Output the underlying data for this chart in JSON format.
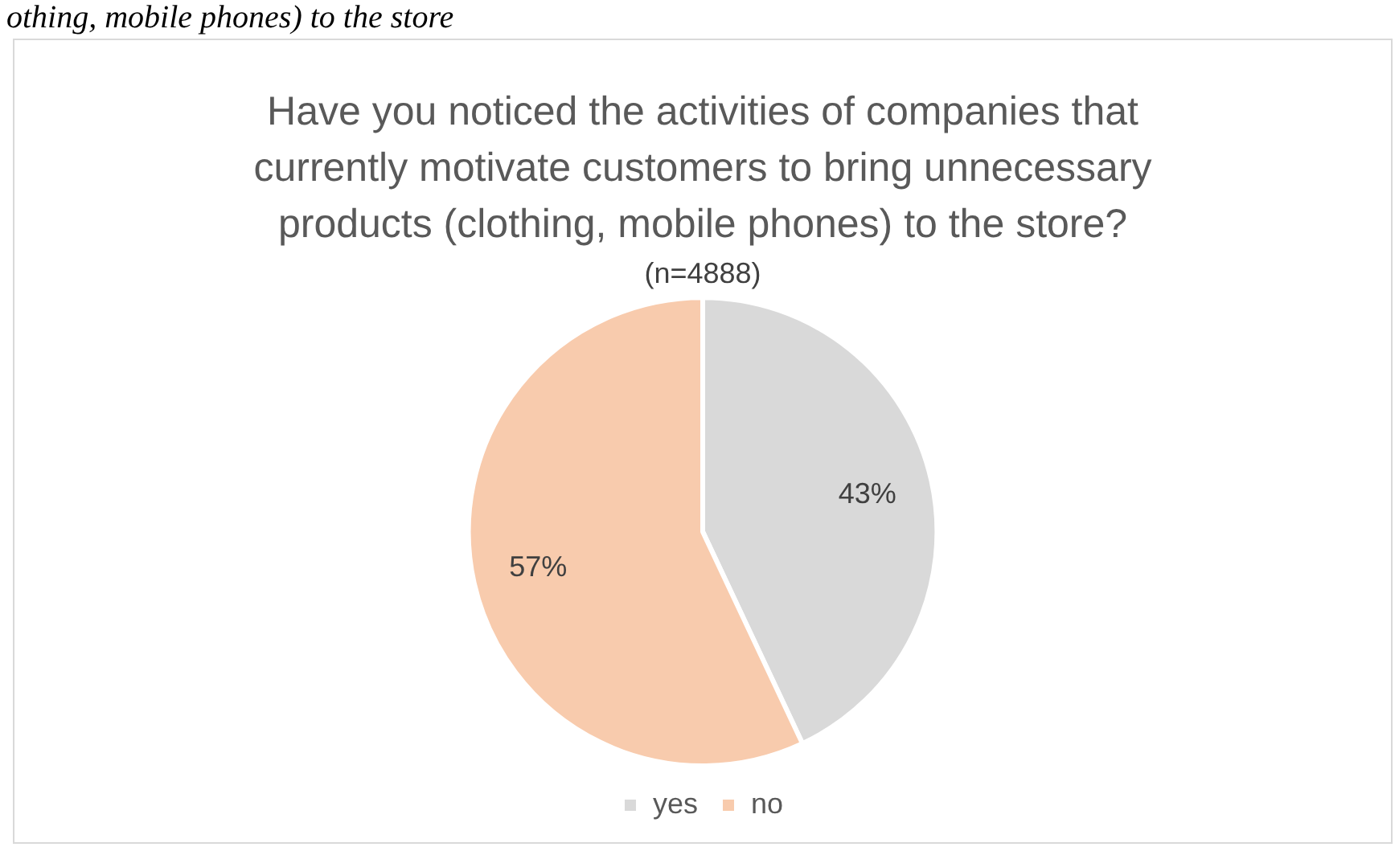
{
  "chart_data": {
    "type": "pie",
    "title": "Have you noticed the activities of companies that currently motivate customers to bring unnecessary products (clothing, mobile phones) to the store?",
    "subtitle": "(n=4888)",
    "annotations": [
      "othing, mobile phones) to the store"
    ],
    "categories": [
      "yes",
      "no"
    ],
    "values": [
      43,
      57
    ],
    "colors": [
      "#d9d9d9",
      "#f8cbad"
    ],
    "value_labels": [
      "43%",
      "57%"
    ],
    "legend": "bottom"
  }
}
